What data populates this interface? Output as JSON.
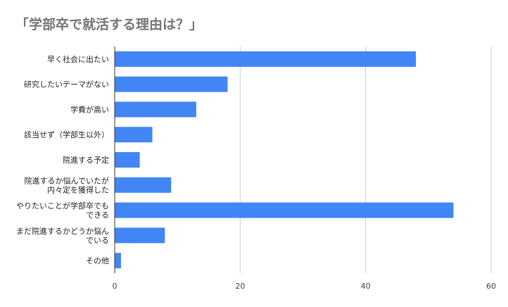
{
  "chart_data": {
    "type": "bar",
    "orientation": "horizontal",
    "title": "「学部卒で就活する理由は？」",
    "categories": [
      [
        "早く社会に出たい"
      ],
      [
        "研究したいテーマがない"
      ],
      [
        "学費が高い"
      ],
      [
        "該当せず（学部生以外）"
      ],
      [
        "院進する予定"
      ],
      [
        "院進するか悩んでいたが",
        "内々定を獲得した"
      ],
      [
        "やりたいことが学部卒でも",
        "できる"
      ],
      [
        "まだ院進するかどうか悩ん",
        "でいる"
      ],
      [
        "その他"
      ]
    ],
    "values": [
      48,
      18,
      13,
      6,
      4,
      9,
      54,
      8,
      1
    ],
    "xlim": [
      0,
      60
    ],
    "xticks": [
      0,
      20,
      40,
      60
    ],
    "grid": true,
    "bar_color": "#4285f4",
    "xlabel": "",
    "ylabel": ""
  }
}
